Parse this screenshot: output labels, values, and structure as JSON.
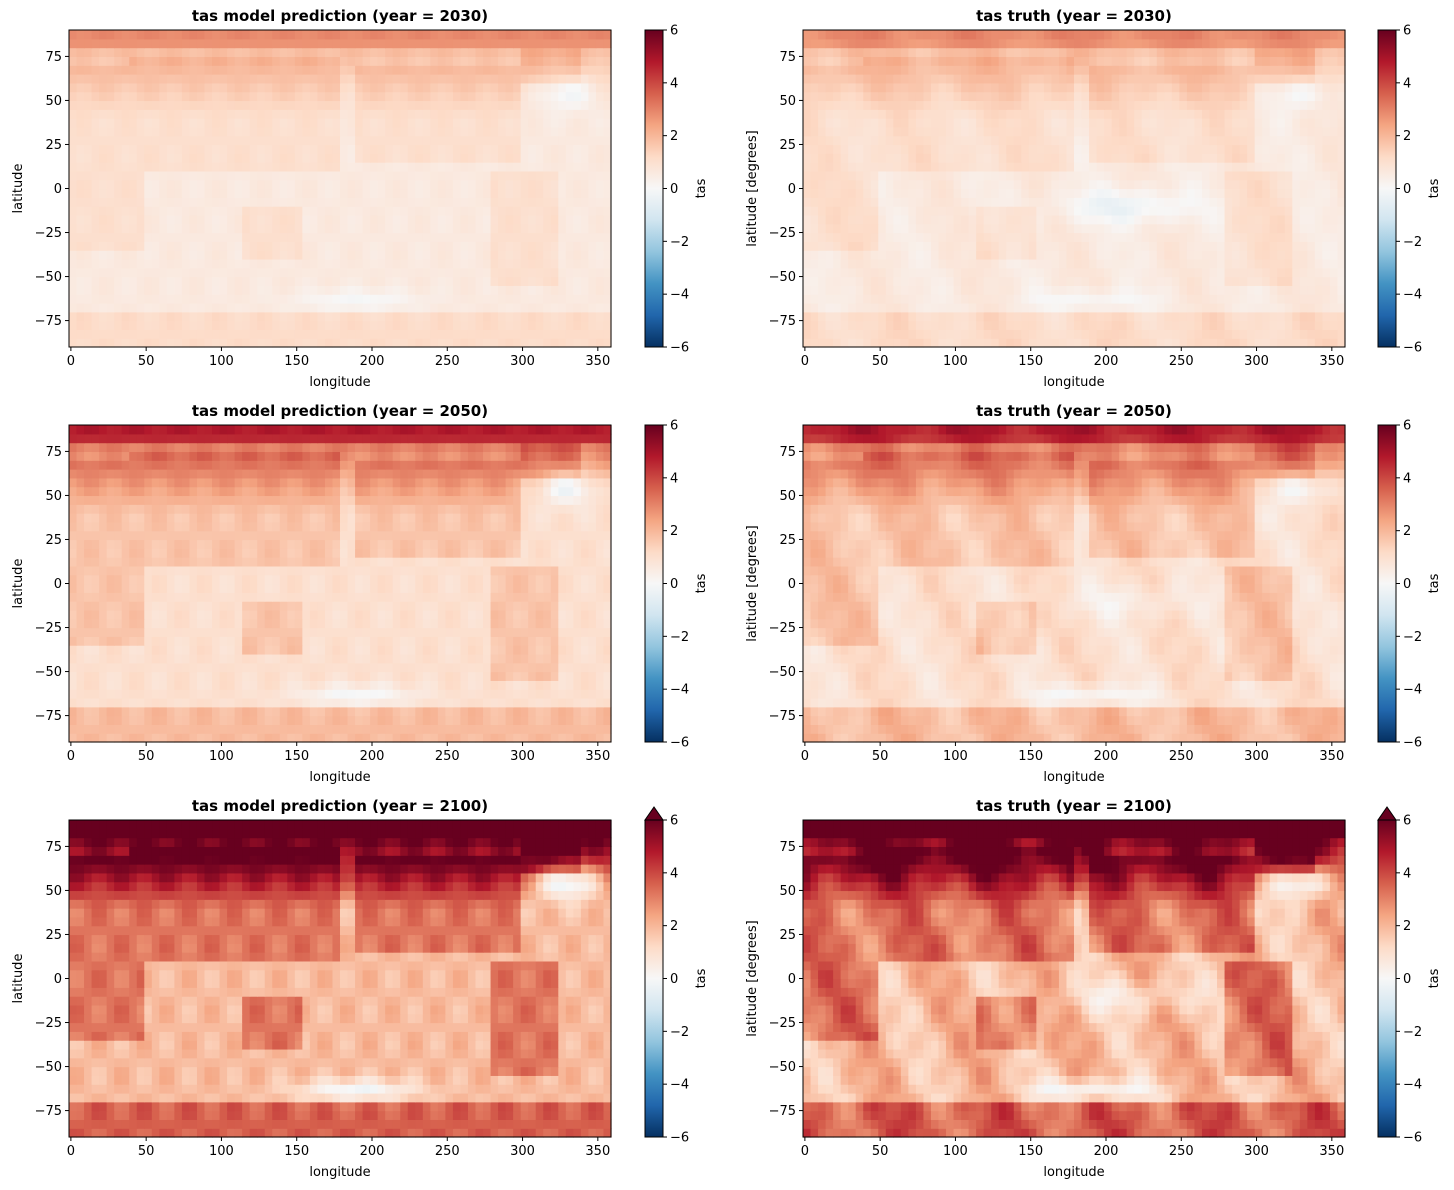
{
  "colormap": {
    "name": "RdBu_r",
    "stops": [
      "#053061",
      "#2166ac",
      "#4393c3",
      "#92c5de",
      "#d1e5f0",
      "#f7f7f7",
      "#fddbc7",
      "#f4a582",
      "#d6604d",
      "#b2182b",
      "#67001f"
    ]
  },
  "chart_data": [
    {
      "type": "heatmap",
      "title": "tas model prediction (year = 2030)",
      "xlabel": "longitude",
      "ylabel": "latitude",
      "xticks": [
        0,
        50,
        100,
        150,
        200,
        250,
        300,
        350
      ],
      "yticks": [
        -75,
        -50,
        -25,
        0,
        25,
        50,
        75
      ],
      "xlim": [
        -1.25,
        358.75
      ],
      "ylim": [
        -90,
        90
      ],
      "colorbar": {
        "label": "tas",
        "ticks": [
          -6,
          -4,
          -2,
          0,
          2,
          4,
          6
        ],
        "vmin": -6,
        "vmax": 6,
        "extend": "neither"
      },
      "year": 2030,
      "kind": "prediction"
    },
    {
      "type": "heatmap",
      "title": "tas truth (year = 2030)",
      "xlabel": "longitude",
      "ylabel": "latitude [degrees]",
      "xticks": [
        0,
        50,
        100,
        150,
        200,
        250,
        300,
        350
      ],
      "yticks": [
        -75,
        -50,
        -25,
        0,
        25,
        50,
        75
      ],
      "xlim": [
        -1.25,
        358.75
      ],
      "ylim": [
        -90,
        90
      ],
      "colorbar": {
        "label": "tas",
        "ticks": [
          -6,
          -4,
          -2,
          0,
          2,
          4,
          6
        ],
        "vmin": -6,
        "vmax": 6,
        "extend": "neither"
      },
      "year": 2030,
      "kind": "truth"
    },
    {
      "type": "heatmap",
      "title": "tas model prediction (year = 2050)",
      "xlabel": "longitude",
      "ylabel": "latitude",
      "xticks": [
        0,
        50,
        100,
        150,
        200,
        250,
        300,
        350
      ],
      "yticks": [
        -75,
        -50,
        -25,
        0,
        25,
        50,
        75
      ],
      "xlim": [
        -1.25,
        358.75
      ],
      "ylim": [
        -90,
        90
      ],
      "colorbar": {
        "label": "tas",
        "ticks": [
          -6,
          -4,
          -2,
          0,
          2,
          4,
          6
        ],
        "vmin": -6,
        "vmax": 6,
        "extend": "neither"
      },
      "year": 2050,
      "kind": "prediction"
    },
    {
      "type": "heatmap",
      "title": "tas truth (year = 2050)",
      "xlabel": "longitude",
      "ylabel": "latitude [degrees]",
      "xticks": [
        0,
        50,
        100,
        150,
        200,
        250,
        300,
        350
      ],
      "yticks": [
        -75,
        -50,
        -25,
        0,
        25,
        50,
        75
      ],
      "xlim": [
        -1.25,
        358.75
      ],
      "ylim": [
        -90,
        90
      ],
      "colorbar": {
        "label": "tas",
        "ticks": [
          -6,
          -4,
          -2,
          0,
          2,
          4,
          6
        ],
        "vmin": -6,
        "vmax": 6,
        "extend": "neither"
      },
      "year": 2050,
      "kind": "truth"
    },
    {
      "type": "heatmap",
      "title": "tas model prediction (year = 2100)",
      "xlabel": "longitude",
      "ylabel": "latitude",
      "xticks": [
        0,
        50,
        100,
        150,
        200,
        250,
        300,
        350
      ],
      "yticks": [
        -75,
        -50,
        -25,
        0,
        25,
        50,
        75
      ],
      "xlim": [
        -1.25,
        358.75
      ],
      "ylim": [
        -90,
        90
      ],
      "colorbar": {
        "label": "tas",
        "ticks": [
          -6,
          -4,
          -2,
          0,
          2,
          4,
          6
        ],
        "vmin": -6,
        "vmax": 6,
        "extend": "max"
      },
      "year": 2100,
      "kind": "prediction"
    },
    {
      "type": "heatmap",
      "title": "tas truth (year = 2100)",
      "xlabel": "longitude",
      "ylabel": "latitude [degrees]",
      "xticks": [
        0,
        50,
        100,
        150,
        200,
        250,
        300,
        350
      ],
      "yticks": [
        -75,
        -50,
        -25,
        0,
        25,
        50,
        75
      ],
      "xlim": [
        -1.25,
        358.75
      ],
      "ylim": [
        -90,
        90
      ],
      "colorbar": {
        "label": "tas",
        "ticks": [
          -6,
          -4,
          -2,
          0,
          2,
          4,
          6
        ],
        "vmin": -6,
        "vmax": 6,
        "extend": "max"
      },
      "year": 2100,
      "kind": "truth"
    }
  ]
}
